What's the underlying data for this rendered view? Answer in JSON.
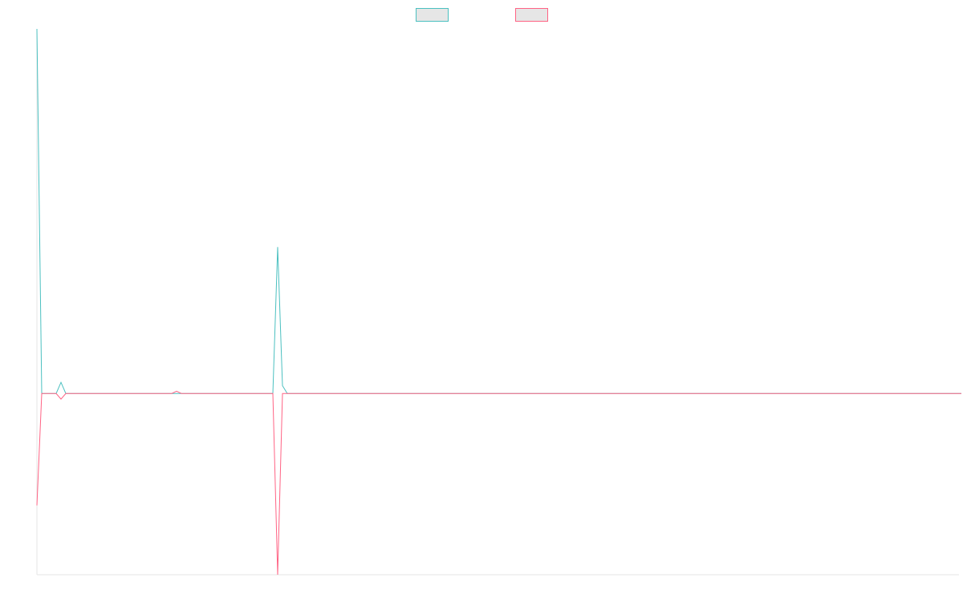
{
  "chart_data": {
    "type": "line",
    "title": "",
    "xlabel": "",
    "ylabel": "",
    "grid": false,
    "legend_placement": "top-center",
    "x": [
      0,
      1,
      2,
      3,
      4,
      5,
      6,
      7,
      8,
      9,
      10,
      11,
      12,
      13,
      14,
      15,
      16,
      17,
      18,
      19,
      20,
      21,
      22,
      23,
      24,
      25,
      26,
      27,
      28,
      29,
      30,
      31,
      32,
      33,
      34,
      35,
      36,
      37,
      38,
      39,
      40,
      41,
      42,
      43,
      44,
      45,
      46,
      47,
      48,
      49,
      50,
      51,
      52,
      53,
      54,
      55,
      56,
      57,
      58,
      59,
      60,
      61,
      62,
      63,
      64,
      65,
      66,
      67,
      68,
      69,
      70,
      71,
      72,
      73,
      74,
      75,
      76,
      77,
      78,
      79,
      80,
      81,
      82,
      83,
      84,
      85,
      86,
      87,
      88,
      89,
      90,
      91,
      92,
      93,
      94,
      95,
      96,
      97,
      98,
      99,
      100,
      101,
      102,
      103,
      104,
      105,
      106,
      107,
      108,
      109,
      110,
      111,
      112,
      113,
      114,
      115,
      116,
      117,
      118,
      119,
      120,
      121,
      122,
      123,
      124,
      125,
      126,
      127,
      128,
      129,
      130,
      131,
      132,
      133,
      134,
      135,
      136,
      137,
      138,
      139,
      140,
      141,
      142,
      143,
      144,
      145,
      146,
      147,
      148,
      149,
      150,
      151,
      152,
      153,
      154,
      155,
      156,
      157,
      158,
      159,
      160,
      161,
      162,
      163,
      164,
      165,
      166,
      167,
      168,
      169,
      170,
      171,
      172,
      173,
      174,
      175,
      176,
      177,
      178,
      179,
      180,
      181,
      182,
      183,
      184,
      185,
      186,
      187,
      188,
      189,
      190,
      191,
      192
    ],
    "ylim": [
      -1.62,
      3.26
    ],
    "series": [
      {
        "name": "",
        "color": "#4bc0c0",
        "values": [
          3.26,
          0,
          0,
          0,
          0,
          0.1,
          0,
          0,
          0,
          0,
          0,
          0,
          0,
          0,
          0,
          0,
          0,
          0,
          0,
          0,
          0,
          0,
          0,
          0,
          0,
          0,
          0,
          0,
          0,
          0,
          0,
          0,
          0,
          0,
          0,
          0,
          0,
          0,
          0,
          0,
          0,
          0,
          0,
          0,
          0,
          0,
          0,
          0,
          0,
          0,
          1.31,
          0.07,
          0,
          0,
          0,
          0,
          0,
          0,
          0,
          0,
          0,
          0,
          0,
          0,
          0,
          0,
          0,
          0,
          0,
          0,
          0,
          0,
          0,
          0,
          0,
          0,
          0,
          0,
          0,
          0,
          0,
          0,
          0,
          0,
          0,
          0,
          0,
          0,
          0,
          0,
          0,
          0,
          0,
          0,
          0,
          0,
          0,
          0,
          0,
          0,
          0,
          0,
          0,
          0,
          0,
          0,
          0,
          0,
          0,
          0,
          0,
          0,
          0,
          0,
          0,
          0,
          0,
          0,
          0,
          0,
          0,
          0,
          0,
          0,
          0,
          0,
          0,
          0,
          0,
          0,
          0,
          0,
          0,
          0,
          0,
          0,
          0,
          0,
          0,
          0,
          0,
          0,
          0,
          0,
          0,
          0,
          0,
          0,
          0,
          0,
          0,
          0,
          0,
          0,
          0,
          0,
          0,
          0,
          0,
          0,
          0,
          0,
          0,
          0,
          0,
          0,
          0,
          0,
          0,
          0,
          0,
          0,
          0,
          0,
          0,
          0,
          0,
          0,
          0,
          0,
          0,
          0,
          0,
          0,
          0,
          0,
          0,
          0,
          0,
          0,
          0,
          0,
          0
        ]
      },
      {
        "name": "",
        "color": "#ff6384",
        "values": [
          -1.0,
          0,
          0,
          0,
          0,
          -0.05,
          0,
          0,
          0,
          0,
          0,
          0,
          0,
          0,
          0,
          0,
          0,
          0,
          0,
          0,
          0,
          0,
          0,
          0,
          0,
          0,
          0,
          0,
          0,
          0.02,
          0,
          0,
          0,
          0,
          0,
          0,
          0,
          0,
          0,
          0,
          0,
          0,
          0,
          0,
          0,
          0,
          0,
          0,
          0,
          0,
          -1.62,
          0,
          0,
          0,
          0,
          0,
          0,
          0,
          0,
          0,
          0,
          0,
          0,
          0,
          0,
          0,
          0,
          0,
          0,
          0,
          0,
          0,
          0,
          0,
          0,
          0,
          0,
          0,
          0,
          0,
          0,
          0,
          0,
          0,
          0,
          0,
          0,
          0,
          0,
          0,
          0,
          0,
          0,
          0,
          0,
          0,
          0,
          0,
          0,
          0,
          0,
          0,
          0,
          0,
          0,
          0,
          0,
          0,
          0,
          0,
          0,
          0,
          0,
          0,
          0,
          0,
          0,
          0,
          0,
          0,
          0,
          0,
          0,
          0,
          0,
          0,
          0,
          0,
          0,
          0,
          0,
          0,
          0,
          0,
          0,
          0,
          0,
          0,
          0,
          0,
          0,
          0,
          0,
          0,
          0,
          0,
          0,
          0,
          0,
          0,
          0,
          0,
          0,
          0,
          0,
          0,
          0,
          0,
          0,
          0,
          0,
          0,
          0,
          0,
          0,
          0,
          0,
          0,
          0,
          0,
          0,
          0,
          0,
          0,
          0,
          0,
          0,
          0,
          0,
          0,
          0,
          0,
          0,
          0,
          0,
          0,
          0,
          0,
          0,
          0,
          0,
          0,
          0
        ]
      }
    ]
  }
}
